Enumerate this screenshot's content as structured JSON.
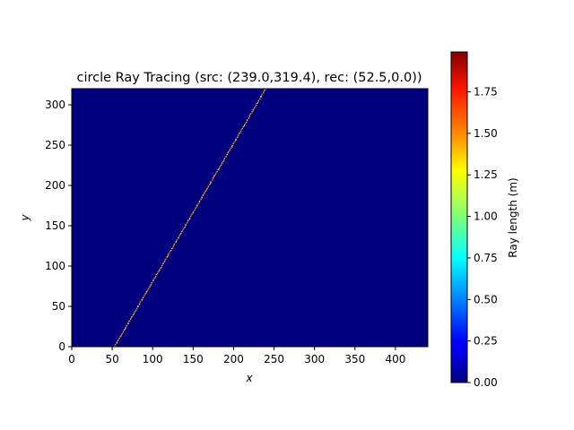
{
  "chart_data": [
    {
      "type": "heatmap",
      "title": "circle Ray Tracing (src: (239.0,319.4), rec: (52.5,0.0))",
      "xlabel": "x",
      "ylabel": "y",
      "xlim": [
        0,
        440
      ],
      "ylim": [
        0,
        320
      ],
      "xticks": [
        0,
        50,
        100,
        150,
        200,
        250,
        300,
        350,
        400
      ],
      "yticks": [
        0,
        50,
        100,
        150,
        200,
        250,
        300
      ],
      "source": [
        239.0,
        319.4
      ],
      "receiver": [
        52.5,
        0.0
      ],
      "background_value": 0.0,
      "ray_cell_value_range": [
        1.0,
        1.9
      ],
      "colormap": "jet"
    },
    {
      "type": "colorbar",
      "label": "Ray length (m)",
      "range": [
        0.0,
        1.99
      ],
      "ticks": [
        "0.00",
        "0.25",
        "0.50",
        "0.75",
        "1.00",
        "1.25",
        "1.50",
        "1.75"
      ],
      "tick_values": [
        0.0,
        0.25,
        0.5,
        0.75,
        1.0,
        1.25,
        1.5,
        1.75
      ]
    }
  ]
}
